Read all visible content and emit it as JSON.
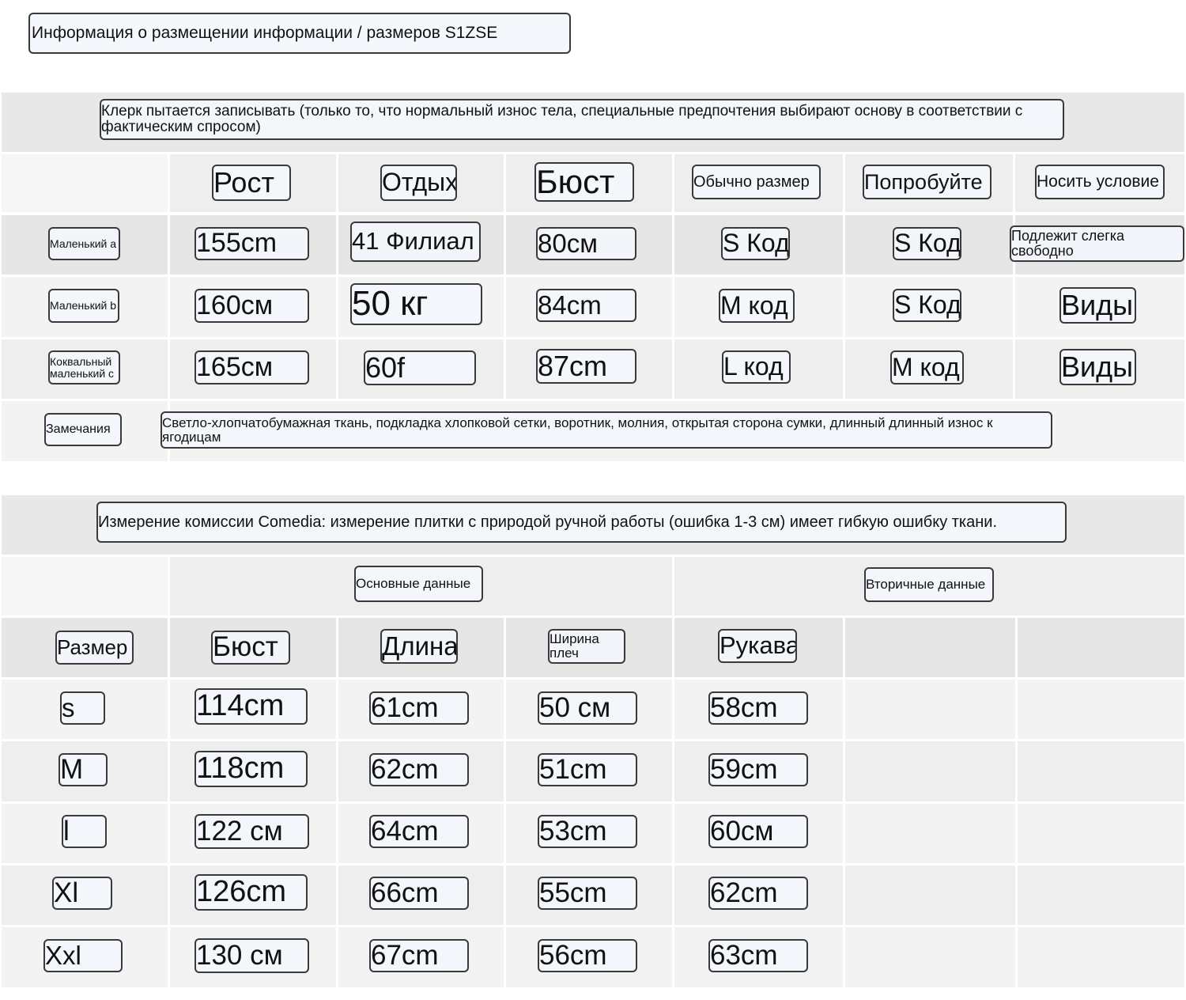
{
  "header": {
    "title": "Информация о размещении информации / размеров S1ZSE"
  },
  "table1": {
    "note": "Клерк пытается записывать (только то, что нормальный износ тела, специальные предпочтения выбирают основу в соответствии с фактическим спросом)",
    "columns": [
      "Рост",
      "Отдых",
      "Бюст",
      "Обычно размер",
      "Попробуйте",
      "Носить условие"
    ],
    "rows": [
      {
        "label": "Маленький а",
        "cells": [
          "155cm",
          "41 Филиал",
          "80см",
          "S Код",
          "S Код",
          "Подлежит слегка свободно"
        ]
      },
      {
        "label": "Маленький b",
        "cells": [
          "160см",
          "50 кг",
          "84cm",
          "M код",
          "S Код",
          "Виды"
        ]
      },
      {
        "label": "Коквальный маленький с",
        "cells": [
          "165см",
          "60f",
          "87cm",
          "L код",
          "M код",
          "Виды"
        ]
      }
    ],
    "remarks_label": "Замечания",
    "remarks": "Светло-хлопчатобумажная ткань, подкладка хлопковой сетки, воротник, молния, открытая сторона сумки, длинный длинный износ к ягодицам"
  },
  "table2": {
    "note": "Измерение комиссии Comedia: измерение плитки с природой ручной работы (ошибка 1-3 см) имеет гибкую ошибку ткани.",
    "group_primary": "Основные данные",
    "group_secondary": "Вторичные данные",
    "size_label": "Размер",
    "columns": [
      "Бюст",
      "Длина",
      "Ширина плеч",
      "Рукава"
    ],
    "rows": [
      {
        "size": "s",
        "cells": [
          "114cm",
          "61cm",
          "50 см",
          "58cm"
        ]
      },
      {
        "size": "M",
        "cells": [
          "118cm",
          "62cm",
          "51cm",
          "59cm"
        ]
      },
      {
        "size": "l",
        "cells": [
          "122 см",
          "64cm",
          "53cm",
          "60см"
        ]
      },
      {
        "size": "Xl",
        "cells": [
          "126cm",
          "66cm",
          "55cm",
          "62cm"
        ]
      },
      {
        "size": "Xxl",
        "cells": [
          "130 см",
          "67cm",
          "56cm",
          "63cm"
        ]
      }
    ]
  }
}
